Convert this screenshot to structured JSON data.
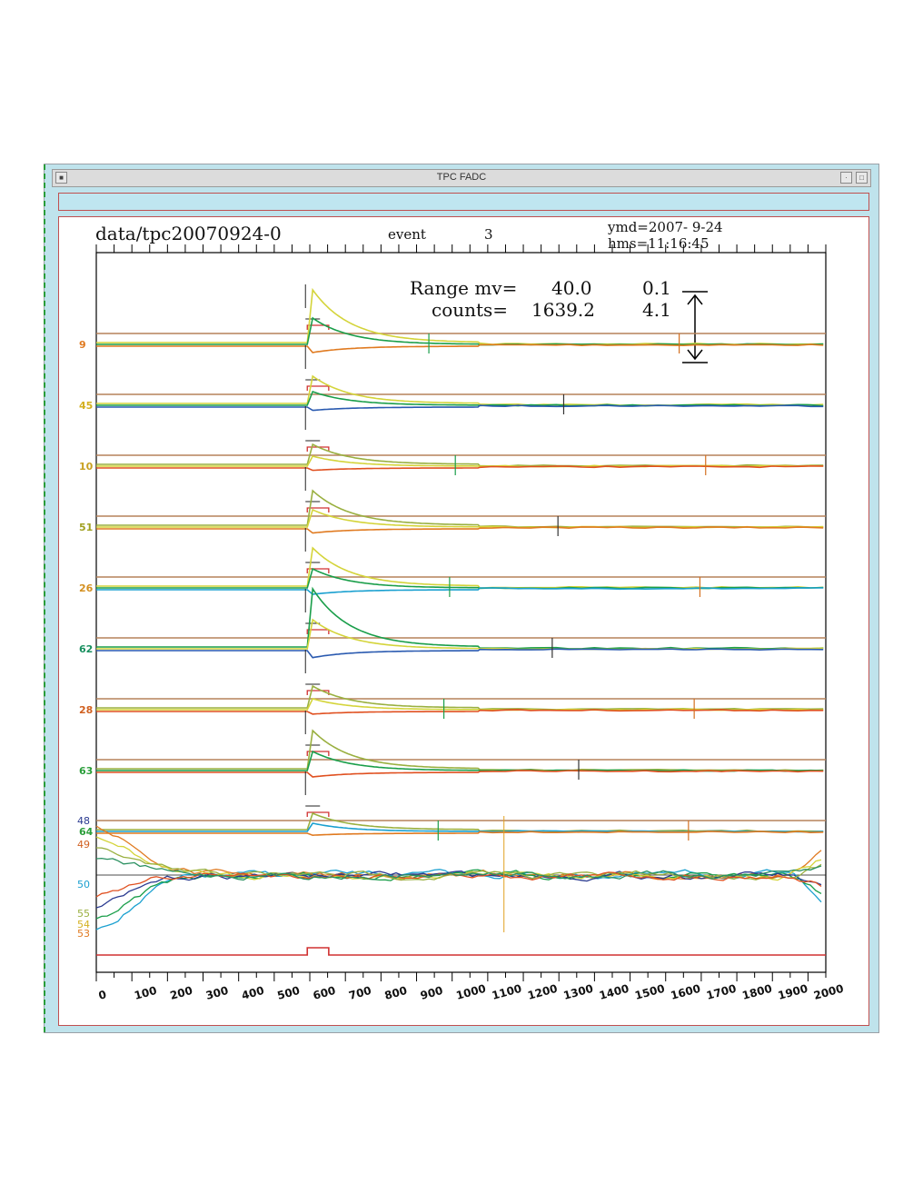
{
  "window": {
    "title": "TPC FADC",
    "header": {
      "file": "data/tpc20070924-0",
      "event_label": "event",
      "event_number": "3",
      "ymd": "ymd=2007- 9-24",
      "hms": "hms=11:16:45"
    },
    "range": {
      "line1_label": "Range mv=",
      "line1_value": "40.0",
      "line1_sub": "0.1",
      "line2_label": "counts=",
      "line2_value": "1639.2",
      "line2_sub": "4.1"
    }
  },
  "chart_data": {
    "type": "line",
    "x_ticks": [
      0,
      100,
      200,
      300,
      400,
      500,
      600,
      700,
      800,
      900,
      1000,
      1100,
      1200,
      1300,
      1400,
      1500,
      1600,
      1700,
      1800,
      1900,
      2000
    ],
    "xlim": [
      -40,
      2000
    ],
    "pulse_start": 550,
    "trigger_window": [
      550,
      610
    ],
    "panels": [
      {
        "label": "9",
        "label_color": "#e07a20",
        "amp": 58,
        "colors": [
          "#d4d43a",
          "#1a9e4a",
          "#e07a20"
        ]
      },
      {
        "label": "45",
        "label_color": "#d4b020",
        "amp": 30,
        "colors": [
          "#d4d43a",
          "#1a9e4a",
          "#2a5ab0"
        ]
      },
      {
        "label": "10",
        "label_color": "#c8a020",
        "amp": 22,
        "colors": [
          "#9ab040",
          "#d4d43a",
          "#e05020"
        ]
      },
      {
        "label": "51",
        "label_color": "#a0a020",
        "amp": 38,
        "colors": [
          "#9ab040",
          "#d4d43a",
          "#e07a20"
        ]
      },
      {
        "label": "26",
        "label_color": "#d49020",
        "amp": 42,
        "colors": [
          "#d4d43a",
          "#1a9e4a",
          "#1aa0d0"
        ]
      },
      {
        "label": "62",
        "label_color": "#1a9060",
        "amp": 64,
        "colors": [
          "#1a9e4a",
          "#d4d43a",
          "#2a5ab0"
        ]
      },
      {
        "label": "28",
        "label_color": "#d06020",
        "amp": 24,
        "colors": [
          "#9ab040",
          "#d4d43a",
          "#e05020"
        ]
      },
      {
        "label": "63",
        "label_color": "#2a9e3a",
        "amp": 42,
        "colors": [
          "#9ab040",
          "#1a9e4a",
          "#e05020"
        ]
      },
      {
        "label": "64",
        "label_color": "#2a9e3a",
        "amp": 18,
        "colors": [
          "#9ab040",
          "#1aa0d0",
          "#e07a20"
        ]
      }
    ],
    "bottom_labels": [
      {
        "text": "48",
        "color": "#2a3a90"
      },
      {
        "text": "49",
        "color": "#d06020"
      },
      {
        "text": "50",
        "color": "#1aa0d0"
      },
      {
        "text": "55",
        "color": "#9ab040"
      },
      {
        "text": "54",
        "color": "#d4b020"
      },
      {
        "text": "53",
        "color": "#e07a20"
      }
    ],
    "noise_colors": [
      "#1aa0d0",
      "#e07a20",
      "#1a9e4a",
      "#d4d43a",
      "#2a3a90",
      "#9ab040",
      "#e05020",
      "#2a9060"
    ]
  }
}
